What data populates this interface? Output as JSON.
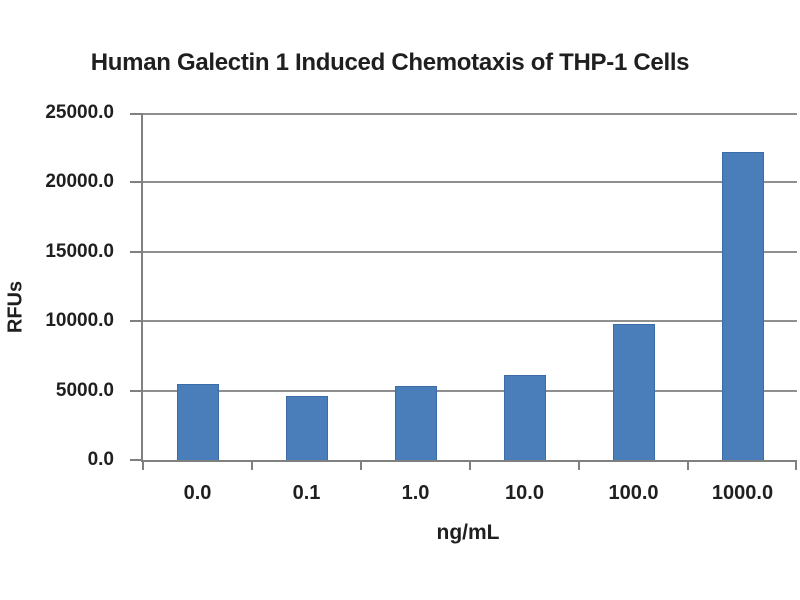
{
  "chart_data": {
    "type": "bar",
    "title": "Human Galectin 1 Induced Chemotaxis of THP-1 Cells",
    "xlabel": "ng/mL",
    "ylabel": "RFUs",
    "categories": [
      "0.0",
      "0.1",
      "1.0",
      "10.0",
      "100.0",
      "1000.0"
    ],
    "values": [
      5500,
      4600,
      5300,
      6100,
      9800,
      22200
    ],
    "ylim": [
      0,
      25000
    ],
    "ytick_step": 5000,
    "ytick_labels": [
      "0.0",
      "5000.0",
      "10000.0",
      "15000.0",
      "20000.0",
      "25000.0"
    ],
    "grid": true,
    "legend": false
  },
  "colors": {
    "background": "#ffffff",
    "text": "#1f1f1f",
    "axis": "#808080",
    "grid": "#8f8f8f",
    "bar-fill": "#4a7ebb",
    "bar-border": "#3c6ca8"
  }
}
